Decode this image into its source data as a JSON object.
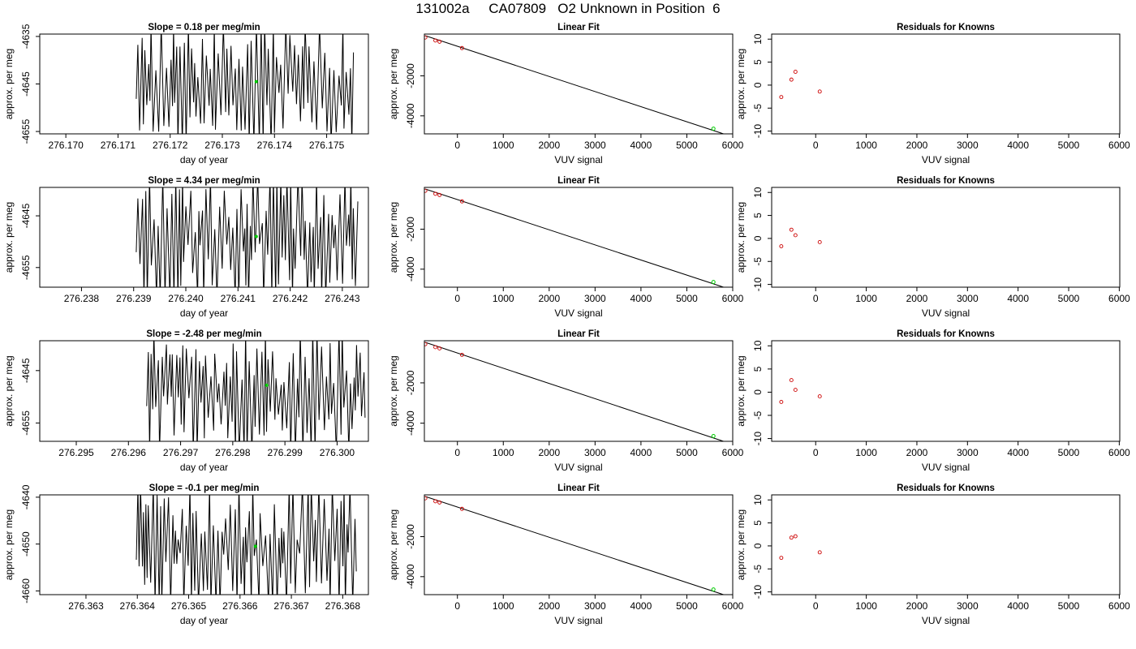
{
  "title": "131002a     CA07809   O2 Unknown in Position  6",
  "chart_data": [
    {
      "type": "line",
      "title": "Slope =  0.18  per meg/min",
      "xlabel": "day of year",
      "ylabel": "approx. per meg",
      "xlim": [
        276.1695,
        276.1758
      ],
      "ylim": [
        -4655.5,
        -4634.5
      ],
      "xticks": [
        276.17,
        276.171,
        276.172,
        276.173,
        276.174,
        276.175
      ],
      "xtick_decimals": 3,
      "yticks": [
        -4655,
        -4645,
        -4635
      ],
      "trace_start": 276.17135,
      "trace_end": 276.17555,
      "trace_high": -4634.5,
      "trace_low": -4655.5,
      "seed": 11,
      "marker": {
        "x": 276.17365,
        "y": -4644.5,
        "color": "#00cc00"
      }
    },
    {
      "type": "scatter",
      "title": "Linear Fit",
      "xlabel": "VUV signal",
      "ylabel": "approx. per meg",
      "xlim": [
        -720,
        6000
      ],
      "ylim": [
        -4900,
        90
      ],
      "xticks": [
        0,
        1000,
        2000,
        3000,
        4000,
        5000,
        6000
      ],
      "yticks": [
        -4000,
        -2000
      ],
      "points": [
        [
          -700,
          -80
        ],
        [
          -480,
          -230
        ],
        [
          -390,
          -290
        ],
        [
          100,
          -610
        ]
      ],
      "point_color": "#cc0000",
      "unknown": {
        "x": 5580,
        "y": -4640,
        "color": "#00cc00"
      },
      "fit_line": [
        [
          -700,
          10
        ],
        [
          5800,
          -4900
        ]
      ]
    },
    {
      "type": "scatter",
      "title": "Residuals for Knowns",
      "xlabel": "VUV signal",
      "ylabel": "approx. per meg",
      "xlim": [
        -870,
        6010
      ],
      "ylim": [
        -10.6,
        11.1
      ],
      "xticks": [
        0,
        1000,
        2000,
        3000,
        4000,
        5000,
        6000
      ],
      "yticks": [
        -10,
        -5,
        0,
        5,
        10
      ],
      "points": [
        [
          -680,
          -2.6
        ],
        [
          -480,
          1.2
        ],
        [
          -400,
          2.9
        ],
        [
          80,
          -1.4
        ]
      ],
      "point_color": "#cc0000"
    },
    {
      "type": "line",
      "title": "Slope =  4.34  per meg/min",
      "xlabel": "day of year",
      "ylabel": "approx. per meg",
      "xlim": [
        276.2372,
        276.2435
      ],
      "ylim": [
        -4658.8,
        -4639.5
      ],
      "xticks": [
        276.238,
        276.239,
        276.24,
        276.241,
        276.242,
        276.243
      ],
      "xtick_decimals": 3,
      "yticks": [
        -4655,
        -4645
      ],
      "trace_start": 276.23905,
      "trace_end": 276.2433,
      "trace_high": -4639.5,
      "trace_low": -4658.8,
      "seed": 23,
      "marker": {
        "x": 276.24135,
        "y": -4649,
        "color": "#00cc00"
      }
    },
    {
      "type": "scatter",
      "title": "Linear Fit",
      "xlabel": "VUV signal",
      "ylabel": "approx. per meg",
      "xlim": [
        -720,
        6000
      ],
      "ylim": [
        -4900,
        90
      ],
      "xticks": [
        0,
        1000,
        2000,
        3000,
        4000,
        5000,
        6000
      ],
      "yticks": [
        -4000,
        -2000
      ],
      "points": [
        [
          -700,
          -80
        ],
        [
          -480,
          -230
        ],
        [
          -390,
          -290
        ],
        [
          100,
          -610
        ]
      ],
      "point_color": "#cc0000",
      "unknown": {
        "x": 5580,
        "y": -4640,
        "color": "#00cc00"
      },
      "fit_line": [
        [
          -700,
          10
        ],
        [
          5800,
          -4900
        ]
      ]
    },
    {
      "type": "scatter",
      "title": "Residuals for Knowns",
      "xlabel": "VUV signal",
      "ylabel": "approx. per meg",
      "xlim": [
        -870,
        6010
      ],
      "ylim": [
        -10.6,
        11.1
      ],
      "xticks": [
        0,
        1000,
        2000,
        3000,
        4000,
        5000,
        6000
      ],
      "yticks": [
        -10,
        -5,
        0,
        5,
        10
      ],
      "points": [
        [
          -680,
          -1.7
        ],
        [
          -480,
          1.9
        ],
        [
          -400,
          0.7
        ],
        [
          80,
          -0.8
        ]
      ],
      "point_color": "#cc0000"
    },
    {
      "type": "line",
      "title": "Slope =  -2.48  per meg/min",
      "xlabel": "day of year",
      "ylabel": "approx. per meg",
      "xlim": [
        276.2943,
        276.3006
      ],
      "ylim": [
        -4658.5,
        -4639.3
      ],
      "xticks": [
        276.295,
        276.296,
        276.297,
        276.298,
        276.299,
        276.3
      ],
      "xtick_decimals": 3,
      "yticks": [
        -4655,
        -4645
      ],
      "trace_start": 276.29635,
      "trace_end": 276.30055,
      "trace_high": -4639.3,
      "trace_low": -4658.5,
      "seed": 37,
      "marker": {
        "x": 276.29865,
        "y": -4647.8,
        "color": "#00cc00"
      }
    },
    {
      "type": "scatter",
      "title": "Linear Fit",
      "xlabel": "VUV signal",
      "ylabel": "approx. per meg",
      "xlim": [
        -720,
        6000
      ],
      "ylim": [
        -4900,
        90
      ],
      "xticks": [
        0,
        1000,
        2000,
        3000,
        4000,
        5000,
        6000
      ],
      "yticks": [
        -4000,
        -2000
      ],
      "points": [
        [
          -700,
          -80
        ],
        [
          -480,
          -230
        ],
        [
          -390,
          -290
        ],
        [
          100,
          -610
        ]
      ],
      "point_color": "#cc0000",
      "unknown": {
        "x": 5580,
        "y": -4640,
        "color": "#00cc00"
      },
      "fit_line": [
        [
          -700,
          10
        ],
        [
          5800,
          -4900
        ]
      ]
    },
    {
      "type": "scatter",
      "title": "Residuals for Knowns",
      "xlabel": "VUV signal",
      "ylabel": "approx. per meg",
      "xlim": [
        -870,
        6010
      ],
      "ylim": [
        -10.6,
        11.1
      ],
      "xticks": [
        0,
        1000,
        2000,
        3000,
        4000,
        5000,
        6000
      ],
      "yticks": [
        -10,
        -5,
        0,
        5,
        10
      ],
      "points": [
        [
          -680,
          -2.1
        ],
        [
          -480,
          2.6
        ],
        [
          -400,
          0.5
        ],
        [
          80,
          -0.9
        ]
      ],
      "point_color": "#cc0000"
    },
    {
      "type": "line",
      "title": "Slope =  -0.1  per meg/min",
      "xlabel": "day of year",
      "ylabel": "approx. per meg",
      "xlim": [
        276.3621,
        276.3685
      ],
      "ylim": [
        -4660.8,
        -4639.5
      ],
      "xticks": [
        276.363,
        276.364,
        276.365,
        276.366,
        276.367,
        276.368
      ],
      "xtick_decimals": 3,
      "yticks": [
        -4660,
        -4650,
        -4640
      ],
      "trace_start": 276.36398,
      "trace_end": 276.36828,
      "trace_high": -4639.5,
      "trace_low": -4660.8,
      "seed": 53,
      "marker": {
        "x": 276.3663,
        "y": -4650.5,
        "color": "#00cc00"
      }
    },
    {
      "type": "scatter",
      "title": "Linear Fit",
      "xlabel": "VUV signal",
      "ylabel": "approx. per meg",
      "xlim": [
        -720,
        6000
      ],
      "ylim": [
        -4900,
        90
      ],
      "xticks": [
        0,
        1000,
        2000,
        3000,
        4000,
        5000,
        6000
      ],
      "yticks": [
        -4000,
        -2000
      ],
      "points": [
        [
          -700,
          -80
        ],
        [
          -480,
          -230
        ],
        [
          -390,
          -290
        ],
        [
          100,
          -610
        ]
      ],
      "point_color": "#cc0000",
      "unknown": {
        "x": 5580,
        "y": -4640,
        "color": "#00cc00"
      },
      "fit_line": [
        [
          -700,
          10
        ],
        [
          5800,
          -4900
        ]
      ]
    },
    {
      "type": "scatter",
      "title": "Residuals for Knowns",
      "xlabel": "VUV signal",
      "ylabel": "approx. per meg",
      "xlim": [
        -870,
        6010
      ],
      "ylim": [
        -10.6,
        11.1
      ],
      "xticks": [
        0,
        1000,
        2000,
        3000,
        4000,
        5000,
        6000
      ],
      "yticks": [
        -10,
        -5,
        0,
        5,
        10
      ],
      "points": [
        [
          -680,
          -2.6
        ],
        [
          -480,
          1.8
        ],
        [
          -400,
          2.1
        ],
        [
          80,
          -1.4
        ]
      ],
      "point_color": "#cc0000"
    }
  ]
}
